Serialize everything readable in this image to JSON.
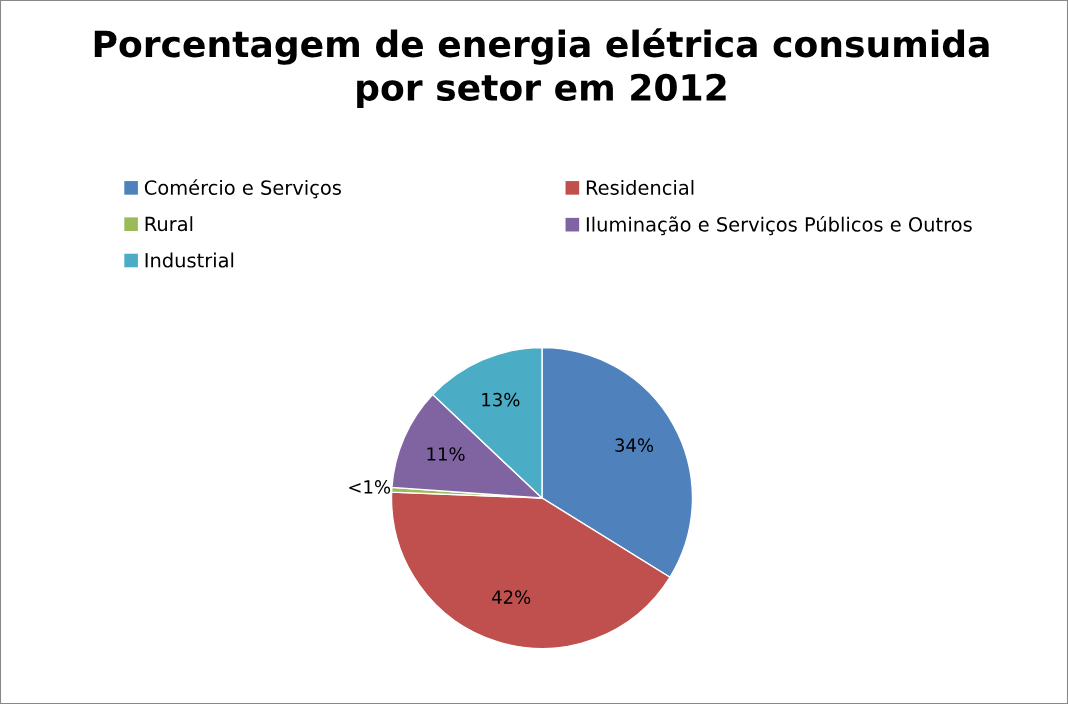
{
  "chart_data": {
    "type": "pie",
    "title": "Porcentagem de energia elétrica consumida\npor setor em 2012",
    "categories": [
      "Comércio e Serviços",
      "Residencial",
      "Rural",
      "Iluminação e Serviços Públicos e Outros",
      "Industrial"
    ],
    "values": [
      34,
      42,
      0.5,
      11,
      13
    ],
    "value_labels": [
      "34%",
      "42%",
      "<1%",
      "11%",
      "13%"
    ],
    "colors": [
      "#4f81bd",
      "#c0504d",
      "#9bbb59",
      "#8064a2",
      "#4bacc6"
    ],
    "legend": "top"
  }
}
